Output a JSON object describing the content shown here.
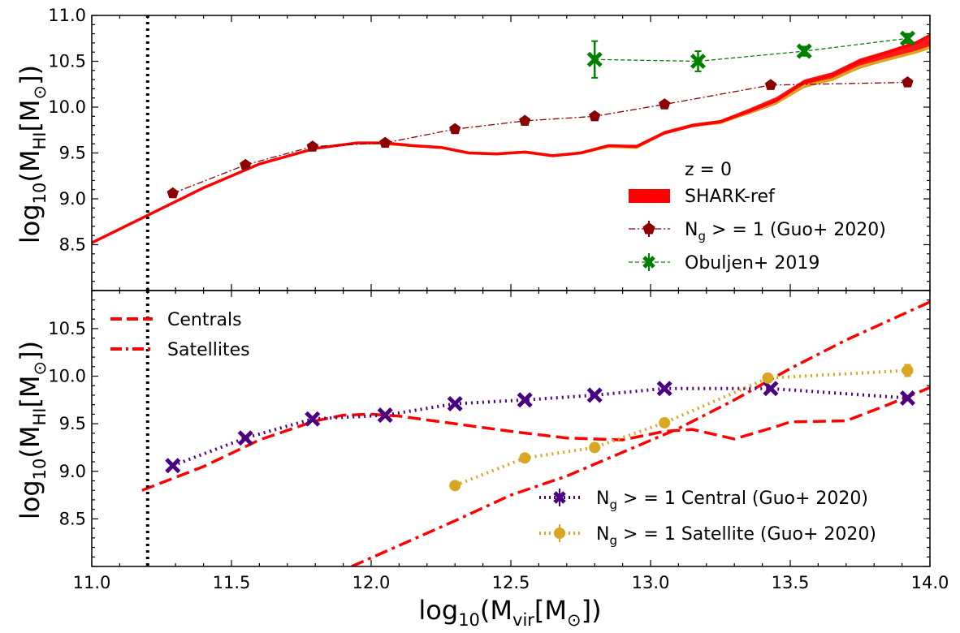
{
  "chart_data": [
    {
      "type": "line",
      "panel": "top",
      "xlim": [
        11.0,
        14.0
      ],
      "ylim": [
        8.0,
        11.0
      ],
      "x_ticks": [
        11.0,
        11.5,
        12.0,
        12.5,
        13.0,
        13.5,
        14.0
      ],
      "x_tick_labels": [
        "11.0",
        "11.5",
        "12.0",
        "12.5",
        "13.0",
        "13.5",
        "14.0"
      ],
      "y_ticks": [
        8.5,
        9.0,
        9.5,
        10.0,
        10.5,
        11.0
      ],
      "y_tick_labels": [
        "8.5",
        "9.0",
        "9.5",
        "10.0",
        "10.5",
        "11.0"
      ],
      "ylabel": "log₁₀(M_HI[M⊙])",
      "vline_x": 11.2,
      "legend": {
        "title": "z = 0",
        "placement": "lower-right",
        "entries": [
          "SHARK-ref",
          "N_g > = 1 (Guo+ 2020)",
          "Obuljen+ 2019"
        ]
      },
      "series": [
        {
          "name": "SHARK-ref",
          "style": "band",
          "color": "#ff0000",
          "x": [
            11.0,
            11.2,
            11.4,
            11.6,
            11.8,
            11.95,
            12.05,
            12.15,
            12.25,
            12.35,
            12.45,
            12.55,
            12.65,
            12.75,
            12.85,
            12.95,
            13.05,
            13.15,
            13.25,
            13.35,
            13.45,
            13.55,
            13.65,
            13.75,
            13.85,
            13.95,
            14.0
          ],
          "upper": [
            8.53,
            8.83,
            9.13,
            9.39,
            9.56,
            9.62,
            9.62,
            9.59,
            9.57,
            9.51,
            9.5,
            9.52,
            9.48,
            9.51,
            9.59,
            9.59,
            9.74,
            9.82,
            9.86,
            9.98,
            10.11,
            10.3,
            10.38,
            10.53,
            10.62,
            10.72,
            10.8
          ],
          "lower": [
            8.51,
            8.81,
            9.11,
            9.37,
            9.54,
            9.6,
            9.6,
            9.57,
            9.55,
            9.49,
            9.48,
            9.5,
            9.46,
            9.49,
            9.57,
            9.55,
            9.7,
            9.78,
            9.82,
            9.92,
            10.03,
            10.21,
            10.29,
            10.42,
            10.51,
            10.6,
            10.64
          ]
        },
        {
          "name": "SHARK-ref",
          "style": "line",
          "color": "#daa520",
          "x": [
            12.05,
            12.15,
            12.25,
            12.35,
            12.45,
            12.55,
            12.65,
            12.75,
            12.85,
            12.95,
            13.05,
            13.15,
            13.25,
            13.35,
            13.45,
            13.55,
            13.65,
            13.75,
            13.85,
            13.95,
            14.0
          ],
          "y": [
            9.6,
            9.58,
            9.56,
            9.5,
            9.49,
            9.51,
            9.47,
            9.5,
            9.57,
            9.56,
            9.72,
            9.8,
            9.83,
            9.94,
            10.05,
            10.23,
            10.3,
            10.44,
            10.52,
            10.6,
            10.65
          ]
        },
        {
          "name": "SHARK-ref",
          "style": "line",
          "color": "#ff0000",
          "x": [
            11.0,
            11.2,
            11.4,
            11.6,
            11.8,
            11.95,
            12.05,
            12.15,
            12.25,
            12.35,
            12.45,
            12.55,
            12.65,
            12.75,
            12.85,
            12.95,
            13.05,
            13.15,
            13.25,
            13.35,
            13.45,
            13.55,
            13.65,
            13.75,
            13.85,
            13.95,
            14.0
          ],
          "y": [
            8.52,
            8.82,
            9.12,
            9.38,
            9.55,
            9.61,
            9.61,
            9.58,
            9.56,
            9.5,
            9.49,
            9.51,
            9.47,
            9.5,
            9.58,
            9.57,
            9.72,
            9.8,
            9.84,
            9.95,
            10.07,
            10.27,
            10.35,
            10.5,
            10.6,
            10.7,
            10.78
          ]
        },
        {
          "name": "N_g > = 1 (Guo+ 2020)",
          "style": "dashdot-marker",
          "marker": "pentagon",
          "color": "#8b0000",
          "x": [
            11.29,
            11.55,
            11.79,
            12.05,
            12.3,
            12.55,
            12.8,
            13.05,
            13.43,
            13.92
          ],
          "y": [
            9.06,
            9.37,
            9.57,
            9.61,
            9.76,
            9.85,
            9.9,
            10.03,
            10.24,
            10.27
          ]
        },
        {
          "name": "Obuljen+ 2019",
          "style": "dashed-marker",
          "marker": "x",
          "color": "#008000",
          "x": [
            12.8,
            13.17,
            13.55,
            13.92
          ],
          "y": [
            10.52,
            10.5,
            10.61,
            10.75
          ],
          "yerr": [
            0.2,
            0.11,
            0.05,
            0.05
          ]
        }
      ]
    },
    {
      "type": "line",
      "panel": "bottom",
      "xlim": [
        11.0,
        14.0
      ],
      "ylim": [
        8.0,
        10.9
      ],
      "x_ticks": [
        11.0,
        11.5,
        12.0,
        12.5,
        13.0,
        13.5,
        14.0
      ],
      "x_tick_labels": [
        "11.0",
        "11.5",
        "12.0",
        "12.5",
        "13.0",
        "13.5",
        "14.0"
      ],
      "y_ticks": [
        8.5,
        9.0,
        9.5,
        10.0,
        10.5
      ],
      "y_tick_labels": [
        "8.5",
        "9.0",
        "9.5",
        "10.0",
        "10.5"
      ],
      "xlabel": "log₁₀(M_vir[M⊙])",
      "ylabel": "log₁₀(M_HI[M⊙])",
      "vline_x": 11.2,
      "legends": [
        {
          "placement": "upper-left",
          "entries": [
            "Centrals",
            "Satellites"
          ]
        },
        {
          "placement": "lower-right",
          "entries": [
            "N_g > = 1 Central (Guo+ 2020)",
            "N_g > = 1 Satellite (Guo+ 2020)"
          ]
        }
      ],
      "series": [
        {
          "name": "Centrals",
          "style": "dashed",
          "color": "#ff0000",
          "x": [
            11.18,
            11.4,
            11.6,
            11.8,
            11.9,
            12.0,
            12.1,
            12.3,
            12.5,
            12.7,
            12.9,
            13.05,
            13.15,
            13.3,
            13.45,
            13.5,
            13.7,
            13.85,
            14.0
          ],
          "y": [
            8.8,
            9.05,
            9.33,
            9.53,
            9.59,
            9.6,
            9.58,
            9.5,
            9.42,
            9.35,
            9.33,
            9.42,
            9.44,
            9.34,
            9.47,
            9.52,
            9.53,
            9.7,
            9.88
          ]
        },
        {
          "name": "Satellites",
          "style": "dashdot",
          "color": "#ff0000",
          "x": [
            11.93,
            12.1,
            12.3,
            12.5,
            12.7,
            12.9,
            13.1,
            13.3,
            13.5,
            13.7,
            13.85,
            14.0
          ],
          "y": [
            8.0,
            8.22,
            8.48,
            8.75,
            8.95,
            9.2,
            9.45,
            9.75,
            10.08,
            10.38,
            10.58,
            10.78
          ]
        },
        {
          "name": "N_g > = 1 Central (Guo+ 2020)",
          "style": "dotted-marker",
          "marker": "x",
          "color": "#4b0082",
          "x": [
            11.29,
            11.55,
            11.79,
            12.05,
            12.3,
            12.55,
            12.8,
            13.05,
            13.43,
            13.92
          ],
          "y": [
            9.06,
            9.35,
            9.55,
            9.59,
            9.71,
            9.75,
            9.8,
            9.87,
            9.87,
            9.77
          ]
        },
        {
          "name": "N_g > = 1 Satellite (Guo+ 2020)",
          "style": "dotted-marker",
          "marker": "circle",
          "color": "#daa520",
          "x": [
            12.3,
            12.55,
            12.8,
            13.05,
            13.42,
            13.92
          ],
          "y": [
            8.85,
            9.14,
            9.25,
            9.51,
            9.98,
            10.06
          ],
          "yerr": [
            0.0,
            0.0,
            0.0,
            0.0,
            0.0,
            0.06
          ]
        }
      ]
    }
  ]
}
